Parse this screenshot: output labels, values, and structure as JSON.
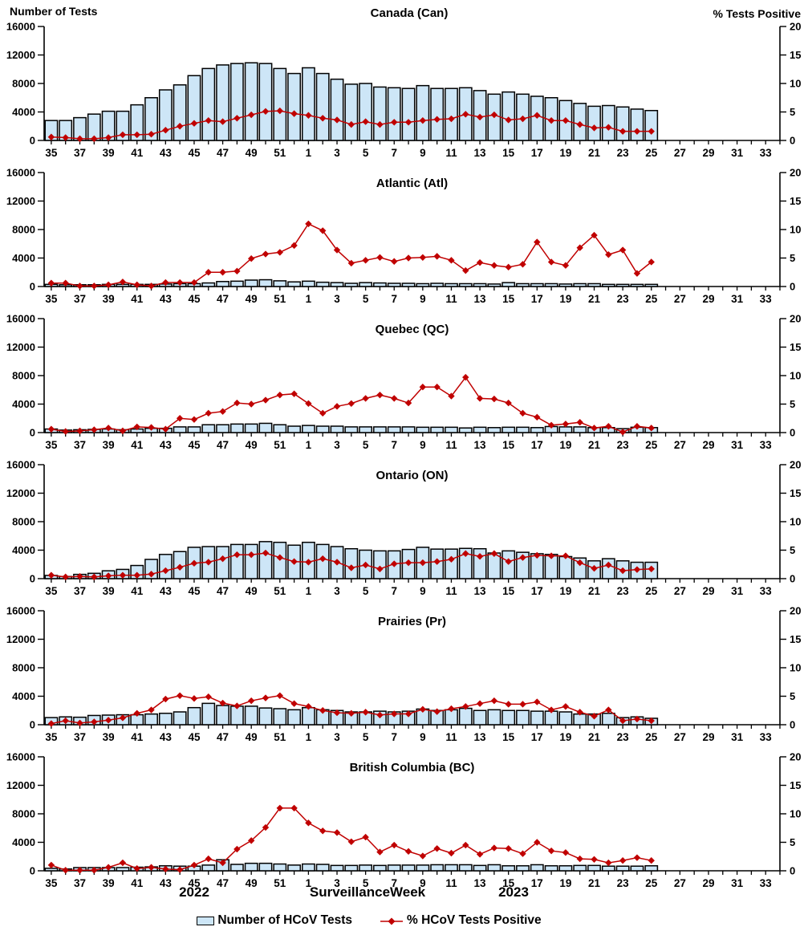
{
  "page": {
    "left_axis_title": "Number of Tests",
    "right_axis_title": "% Tests Positive",
    "x_axis_title": "SurveillanceWeek",
    "year_left": "2022",
    "year_right": "2023",
    "legend": {
      "bars_label": "Number of HCoV Tests",
      "line_label": "% HCoV Tests Positive"
    },
    "colors": {
      "bar_fill": "#CDE6F7",
      "bar_stroke": "#000000",
      "line": "#C00000",
      "text": "#000000",
      "background": "#FFFFFF"
    }
  },
  "chart_axes": {
    "weeks": [
      35,
      36,
      37,
      38,
      39,
      40,
      41,
      42,
      43,
      44,
      45,
      46,
      47,
      48,
      49,
      50,
      51,
      52,
      1,
      2,
      3,
      4,
      5,
      6,
      7,
      8,
      9,
      10,
      11,
      12,
      13,
      14,
      15,
      16,
      17,
      18,
      19,
      20,
      21,
      22,
      23,
      24,
      25
    ],
    "x_tick_labels": [
      "35",
      "37",
      "39",
      "41",
      "43",
      "45",
      "47",
      "49",
      "51",
      "1",
      "3",
      "5",
      "7",
      "9",
      "11",
      "13",
      "15",
      "17",
      "19",
      "21",
      "23",
      "25",
      "27",
      "29",
      "31",
      "33"
    ],
    "x_domain_weeks_total": 52,
    "left": {
      "label": "Number of Tests",
      "lim": [
        0,
        16000
      ],
      "ticks": [
        0,
        4000,
        8000,
        12000,
        16000
      ]
    },
    "right": {
      "label": "% Tests Positive",
      "lim": [
        0,
        20
      ],
      "ticks": [
        0,
        5,
        10,
        15,
        20
      ]
    },
    "grid": "off",
    "legend_position": "bottom"
  },
  "chart_data": [
    {
      "type": "bar+line",
      "title": "Canada (Can)",
      "ylim_left": [
        0,
        16000
      ],
      "ylim_right": [
        0,
        20
      ],
      "series": [
        {
          "name": "Number of HCoV Tests",
          "type": "bar",
          "axis": "left",
          "values": [
            2800,
            2800,
            3200,
            3700,
            4100,
            4100,
            5000,
            6000,
            7100,
            7800,
            9100,
            10100,
            10600,
            10800,
            10900,
            10800,
            10100,
            9400,
            10200,
            9400,
            8600,
            7900,
            8000,
            7500,
            7400,
            7300,
            7700,
            7300,
            7300,
            7400,
            7000,
            6500,
            6800,
            6500,
            6200,
            6000,
            5600,
            5200,
            4800,
            4900,
            4700,
            4400,
            4200
          ]
        },
        {
          "name": "% HCoV Tests Positive",
          "type": "line",
          "axis": "right",
          "values": [
            0.6,
            0.5,
            0.3,
            0.3,
            0.5,
            1.0,
            1.0,
            1.1,
            1.8,
            2.5,
            3.0,
            3.5,
            3.3,
            3.9,
            4.5,
            5.1,
            5.2,
            4.7,
            4.4,
            3.9,
            3.6,
            2.8,
            3.3,
            2.8,
            3.2,
            3.2,
            3.5,
            3.7,
            3.8,
            4.6,
            4.1,
            4.5,
            3.6,
            3.8,
            4.4,
            3.5,
            3.5,
            2.8,
            2.2,
            2.3,
            1.6,
            1.6,
            1.6
          ]
        }
      ]
    },
    {
      "type": "bar+line",
      "title": "Atlantic (Atl)",
      "ylim_left": [
        0,
        16000
      ],
      "ylim_right": [
        0,
        20
      ],
      "series": [
        {
          "name": "Number of HCoV Tests",
          "type": "bar",
          "axis": "left",
          "values": [
            300,
            250,
            250,
            250,
            300,
            300,
            300,
            300,
            350,
            400,
            400,
            500,
            700,
            750,
            900,
            950,
            800,
            650,
            750,
            600,
            550,
            450,
            550,
            500,
            450,
            450,
            400,
            450,
            400,
            400,
            400,
            350,
            550,
            400,
            400,
            400,
            350,
            400,
            400,
            300,
            300,
            300,
            300
          ]
        },
        {
          "name": "% HCoV Tests Positive",
          "type": "line",
          "axis": "right",
          "values": [
            0.6,
            0.6,
            0.1,
            0.1,
            0.3,
            0.8,
            0.3,
            0.1,
            0.7,
            0.7,
            0.7,
            2.5,
            2.5,
            2.7,
            4.9,
            5.7,
            6.0,
            7.2,
            11.0,
            9.8,
            6.4,
            4.1,
            4.6,
            5.1,
            4.4,
            5.0,
            5.1,
            5.3,
            4.6,
            2.8,
            4.2,
            3.7,
            3.4,
            3.9,
            7.8,
            4.3,
            3.7,
            6.8,
            9.0,
            5.6,
            6.4,
            2.3,
            4.3
          ]
        }
      ]
    },
    {
      "type": "bar+line",
      "title": "Quebec (QC)",
      "ylim_left": [
        0,
        16000
      ],
      "ylim_right": [
        0,
        20
      ],
      "series": [
        {
          "name": "Number of HCoV Tests",
          "type": "bar",
          "axis": "left",
          "values": [
            500,
            350,
            400,
            450,
            500,
            400,
            500,
            600,
            600,
            800,
            800,
            1100,
            1100,
            1200,
            1200,
            1300,
            1100,
            900,
            1000,
            900,
            900,
            800,
            800,
            800,
            800,
            800,
            750,
            750,
            750,
            650,
            750,
            700,
            750,
            750,
            700,
            850,
            800,
            800,
            700,
            700,
            550,
            750,
            700
          ]
        },
        {
          "name": "% HCoV Tests Positive",
          "type": "line",
          "axis": "right",
          "values": [
            0.6,
            0.2,
            0.3,
            0.5,
            0.8,
            0.3,
            1.0,
            0.9,
            0.6,
            2.5,
            2.3,
            3.4,
            3.7,
            5.2,
            5.0,
            5.7,
            6.6,
            6.8,
            5.1,
            3.4,
            4.6,
            5.1,
            6.0,
            6.6,
            6.0,
            5.2,
            8.0,
            8.0,
            6.4,
            9.7,
            6.0,
            5.9,
            5.2,
            3.4,
            2.7,
            1.3,
            1.5,
            1.8,
            0.8,
            1.1,
            0.1,
            1.1,
            0.8
          ]
        }
      ]
    },
    {
      "type": "bar+line",
      "title": "Ontario (ON)",
      "ylim_left": [
        0,
        16000
      ],
      "ylim_right": [
        0,
        20
      ],
      "series": [
        {
          "name": "Number of HCoV Tests",
          "type": "bar",
          "axis": "left",
          "values": [
            450,
            300,
            600,
            750,
            1100,
            1300,
            1850,
            2700,
            3400,
            3800,
            4400,
            4500,
            4500,
            4800,
            4800,
            5200,
            5100,
            4700,
            5100,
            4800,
            4500,
            4200,
            4000,
            3900,
            3900,
            4100,
            4400,
            4150,
            4150,
            4250,
            4200,
            3600,
            3900,
            3700,
            3500,
            3400,
            3100,
            2900,
            2500,
            2800,
            2500,
            2300,
            2300
          ]
        },
        {
          "name": "% HCoV Tests Positive",
          "type": "line",
          "axis": "right",
          "values": [
            0.6,
            0.3,
            0.4,
            0.3,
            0.5,
            0.6,
            0.6,
            0.8,
            1.4,
            2.0,
            2.7,
            2.9,
            3.5,
            4.2,
            4.2,
            4.5,
            3.7,
            3.0,
            2.9,
            3.5,
            2.9,
            1.9,
            2.4,
            1.7,
            2.6,
            2.8,
            2.8,
            3.0,
            3.4,
            4.4,
            3.9,
            4.4,
            3.0,
            3.7,
            4.1,
            4.0,
            4.0,
            2.8,
            1.8,
            2.4,
            1.4,
            1.6,
            1.7
          ]
        }
      ]
    },
    {
      "type": "bar+line",
      "title": "Prairies (Pr)",
      "ylim_left": [
        0,
        16000
      ],
      "ylim_right": [
        0,
        20
      ],
      "series": [
        {
          "name": "Number of HCoV Tests",
          "type": "bar",
          "axis": "left",
          "values": [
            1000,
            1100,
            1050,
            1300,
            1350,
            1400,
            1400,
            1500,
            1600,
            1800,
            2400,
            3000,
            2700,
            2600,
            2600,
            2350,
            2250,
            2100,
            2400,
            2100,
            2000,
            1800,
            1800,
            1900,
            1800,
            1900,
            2200,
            2000,
            2100,
            2300,
            2000,
            2100,
            2000,
            2000,
            1900,
            1900,
            1800,
            1500,
            1500,
            1600,
            1000,
            1100,
            900
          ]
        },
        {
          "name": "% HCoV Tests Positive",
          "type": "line",
          "axis": "right",
          "values": [
            0.2,
            0.7,
            0.3,
            0.5,
            0.8,
            1.2,
            2.0,
            2.6,
            4.5,
            5.1,
            4.6,
            4.9,
            3.8,
            3.3,
            4.2,
            4.7,
            5.1,
            3.7,
            3.2,
            2.5,
            2.1,
            2.0,
            2.2,
            1.7,
            1.9,
            1.9,
            2.7,
            2.3,
            2.8,
            3.2,
            3.7,
            4.2,
            3.6,
            3.6,
            4.0,
            2.6,
            3.2,
            2.2,
            1.5,
            2.6,
            0.7,
            1.0,
            0.7
          ]
        }
      ]
    },
    {
      "type": "bar+line",
      "title": "British Columbia (BC)",
      "ylim_left": [
        0,
        16000
      ],
      "ylim_right": [
        0,
        20
      ],
      "series": [
        {
          "name": "Number of HCoV Tests",
          "type": "bar",
          "axis": "left",
          "values": [
            350,
            250,
            450,
            450,
            450,
            450,
            500,
            550,
            700,
            650,
            650,
            800,
            1550,
            900,
            1050,
            1050,
            950,
            800,
            950,
            900,
            750,
            750,
            800,
            750,
            800,
            800,
            800,
            850,
            850,
            850,
            750,
            850,
            700,
            700,
            850,
            700,
            700,
            750,
            750,
            650,
            650,
            650,
            700
          ]
        },
        {
          "name": "% HCoV Tests Positive",
          "type": "line",
          "axis": "right",
          "values": [
            1.0,
            0.1,
            0.1,
            0.1,
            0.6,
            1.4,
            0.4,
            0.6,
            0.3,
            0.2,
            1.0,
            2.1,
            1.4,
            3.8,
            5.3,
            7.6,
            11.0,
            11.0,
            8.4,
            7.0,
            6.7,
            5.1,
            5.9,
            3.3,
            4.5,
            3.4,
            2.6,
            3.9,
            3.1,
            4.5,
            2.9,
            4.0,
            3.9,
            3.0,
            5.0,
            3.5,
            3.2,
            2.1,
            2.0,
            1.4,
            1.8,
            2.3,
            1.8
          ]
        }
      ]
    }
  ]
}
